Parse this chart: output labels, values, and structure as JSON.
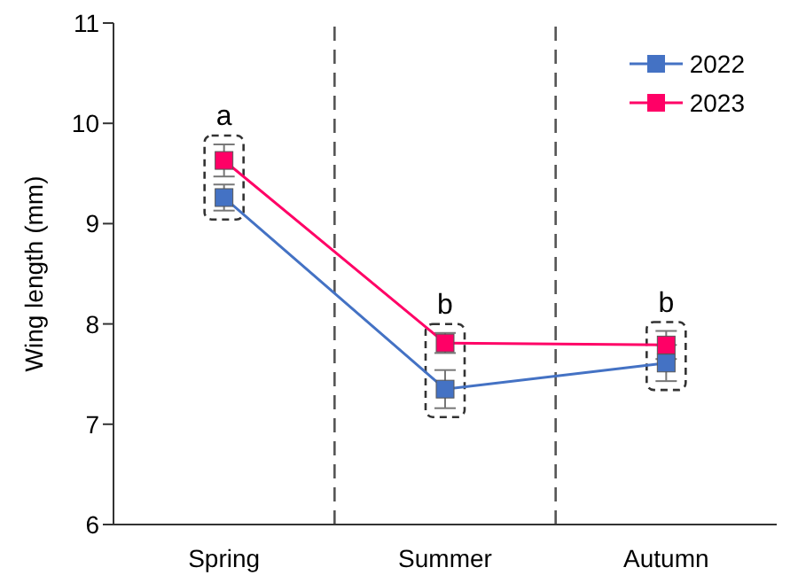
{
  "chart_data": {
    "type": "line",
    "ylabel": "Wing length (mm)",
    "categories": [
      "Spring",
      "Summer",
      "Autumn"
    ],
    "series": [
      {
        "name": "2022",
        "color": "#4472c4",
        "values": [
          9.26,
          7.35,
          7.61
        ],
        "errors": [
          0.13,
          0.19,
          0.18
        ]
      },
      {
        "name": "2023",
        "color": "#ff0066",
        "values": [
          9.63,
          7.81,
          7.79
        ],
        "errors": [
          0.16,
          0.1,
          0.14
        ]
      }
    ],
    "ylim": [
      6,
      11
    ],
    "yticks": [
      6,
      7,
      8,
      9,
      10,
      11
    ],
    "legend": "top right",
    "marker": "square",
    "line_style": "solid",
    "annotations": [
      "a",
      "b",
      "b"
    ]
  }
}
